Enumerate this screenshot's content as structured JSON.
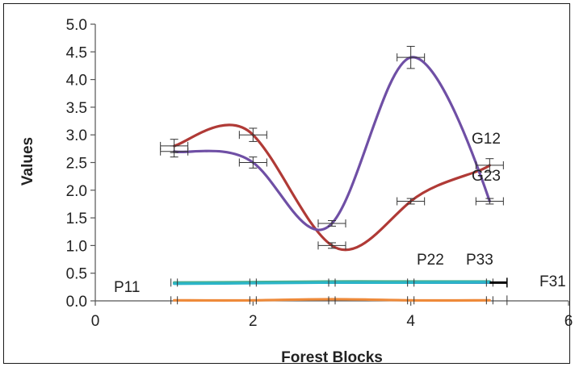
{
  "chart_data": {
    "type": "line",
    "title": "",
    "xlabel": "Forest Blocks",
    "ylabel": "Values",
    "xlim": [
      0,
      6
    ],
    "ylim": [
      0,
      5
    ],
    "x_ticks": [
      "0",
      "2",
      "4",
      "6"
    ],
    "y_ticks": [
      "0.0",
      "0.5",
      "1.0",
      "1.5",
      "2.0",
      "2.5",
      "3.0",
      "3.5",
      "4.0",
      "4.5",
      "5.0"
    ],
    "grid": false,
    "legend": "none",
    "series": [
      {
        "name": "G12",
        "color": "#b03a36",
        "x": [
          1,
          2,
          3,
          4,
          5
        ],
        "values": [
          2.8,
          3.0,
          1.0,
          1.8,
          2.45
        ],
        "error": [
          0.12,
          0.12,
          0.05,
          0.05,
          0.12
        ]
      },
      {
        "name": "G23",
        "color": "#6f4fa5",
        "x": [
          1,
          2,
          3,
          4,
          5
        ],
        "values": [
          2.7,
          2.5,
          1.4,
          4.4,
          1.8
        ],
        "error": [
          0.1,
          0.1,
          0.05,
          0.2,
          0.05
        ]
      },
      {
        "name": "P11",
        "color": "#3f8ec6",
        "x": [
          1,
          2,
          3,
          4,
          5
        ],
        "values": [
          0.33,
          0.33,
          0.33,
          0.33,
          0.33
        ],
        "error": [
          0,
          0,
          0,
          0,
          0
        ]
      },
      {
        "name": "P22",
        "color": "#4caf8c",
        "x": [
          1,
          2,
          3,
          4,
          5
        ],
        "values": [
          0.33,
          0.34,
          0.35,
          0.35,
          0.35
        ],
        "error": [
          0,
          0,
          0,
          0,
          0
        ]
      },
      {
        "name": "P33",
        "color": "#2bb5c8",
        "x": [
          1,
          2,
          3,
          4,
          5
        ],
        "values": [
          0.31,
          0.32,
          0.33,
          0.33,
          0.34
        ],
        "error": [
          0,
          0,
          0,
          0,
          0
        ]
      },
      {
        "name": "F31",
        "color": "#ee8a3a",
        "x": [
          1,
          2,
          3,
          4,
          5
        ],
        "values": [
          0.01,
          0.01,
          0.03,
          0.01,
          0.01
        ],
        "error": [
          0,
          0,
          0,
          0,
          0
        ]
      }
    ]
  }
}
